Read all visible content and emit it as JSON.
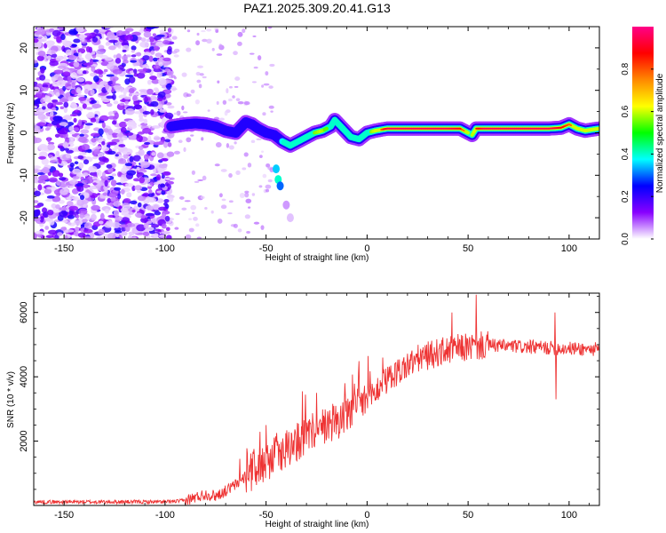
{
  "figure_title": "PAZ1.2025.309.20.41.G13",
  "chart_data": [
    {
      "type": "heatmap",
      "name": "spectrogram",
      "xlabel": "Height of straight line (km)",
      "ylabel": "Frequency (Hz)",
      "xlim": [
        -165,
        115
      ],
      "ylim": [
        -25,
        25
      ],
      "x_ticks": [
        -150,
        -100,
        -50,
        0,
        50,
        100
      ],
      "x_tick_labels": [
        "-150",
        "-100",
        "-50",
        "0",
        "50",
        "100"
      ],
      "y_ticks": [
        -20,
        -10,
        0,
        10,
        20
      ],
      "y_tick_labels": [
        "-20",
        "-10",
        "0",
        "10",
        "20"
      ],
      "noise_region_x": [
        -165,
        -97
      ],
      "ridge": {
        "x": [
          -97,
          -90,
          -85,
          -80,
          -75,
          -70,
          -65,
          -60,
          -57,
          -54,
          -50,
          -46,
          -42,
          -38,
          -34,
          -30,
          -26,
          -22,
          -18,
          -16,
          -12,
          -8,
          -4,
          0,
          4,
          10,
          20,
          30,
          40,
          46,
          50,
          52,
          54,
          58,
          70,
          80,
          90,
          96,
          100,
          104,
          108,
          112,
          115
        ],
        "freq": [
          1.5,
          2.0,
          2.2,
          2.0,
          1.5,
          0.5,
          0.0,
          2.5,
          2.0,
          1.0,
          0.0,
          -0.5,
          -2.0,
          -3.0,
          -2.0,
          -1.0,
          0.0,
          0.5,
          1.5,
          3.0,
          1.0,
          -1.0,
          -1.5,
          0.0,
          0.5,
          1.0,
          1.0,
          1.0,
          1.0,
          1.0,
          0.0,
          -0.5,
          1.0,
          1.0,
          1.0,
          1.0,
          1.0,
          1.2,
          2.0,
          1.0,
          0.5,
          0.8,
          1.0
        ],
        "amplitude": [
          0.3,
          0.32,
          0.35,
          0.35,
          0.32,
          0.3,
          0.35,
          0.3,
          0.28,
          0.3,
          0.32,
          0.3,
          0.35,
          0.55,
          0.45,
          0.45,
          0.55,
          0.6,
          0.45,
          0.4,
          0.45,
          0.4,
          0.45,
          0.5,
          0.6,
          0.95,
          0.95,
          0.95,
          0.95,
          0.9,
          0.55,
          0.5,
          0.85,
          0.95,
          0.95,
          0.95,
          0.95,
          0.9,
          0.8,
          0.65,
          0.6,
          0.6,
          0.6
        ]
      },
      "colorbar": {
        "label": "Normalized spectral amplitude",
        "range": [
          0,
          1
        ],
        "ticks": [
          0.0,
          0.2,
          0.4,
          0.6,
          0.8
        ],
        "tick_labels": [
          "0.0",
          "0.2",
          "0.4",
          "0.6",
          "0.8"
        ],
        "colors": [
          "#ffffff",
          "#8800ff",
          "#0000ff",
          "#00ffff",
          "#00ff00",
          "#ffff00",
          "#ff8800",
          "#ff0000",
          "#ff0088"
        ]
      }
    },
    {
      "type": "line",
      "name": "snr",
      "xlabel": "Height of straight line (km)",
      "ylabel": "SNR (10 * v/v)",
      "xlim": [
        -165,
        115
      ],
      "ylim": [
        0,
        6600
      ],
      "x_ticks": [
        -150,
        -100,
        -50,
        0,
        50,
        100
      ],
      "x_tick_labels": [
        "-150",
        "-100",
        "-50",
        "0",
        "50",
        "100"
      ],
      "y_ticks": [
        2000,
        4000,
        6000
      ],
      "y_tick_labels": [
        "2000",
        "4000",
        "6000"
      ],
      "color": "#ee3333",
      "series": [
        {
          "name": "SNR",
          "x": [
            -165,
            -150,
            -130,
            -110,
            -100,
            -90,
            -85,
            -80,
            -75,
            -70,
            -65,
            -60,
            -55,
            -50,
            -45,
            -40,
            -35,
            -30,
            -25,
            -20,
            -15,
            -10,
            -5,
            0,
            5,
            10,
            15,
            20,
            25,
            30,
            35,
            40,
            45,
            50,
            55,
            60,
            70,
            80,
            90,
            100,
            110,
            115
          ],
          "y": [
            110,
            110,
            110,
            110,
            110,
            150,
            250,
            350,
            300,
            450,
            650,
            900,
            1150,
            1350,
            1550,
            1750,
            1950,
            2150,
            2350,
            2500,
            2650,
            2800,
            3050,
            3300,
            3600,
            3900,
            4150,
            4350,
            4550,
            4650,
            4750,
            4820,
            4880,
            4920,
            4950,
            4980,
            4950,
            4920,
            4900,
            4880,
            4860,
            4850
          ]
        }
      ],
      "spikes": [
        {
          "x": -50,
          "y": 2500
        },
        {
          "x": -32,
          "y": 3550
        },
        {
          "x": -25,
          "y": 3500
        },
        {
          "x": -11,
          "y": 3800
        },
        {
          "x": 42,
          "y": 6000
        },
        {
          "x": 54,
          "y": 6550
        },
        {
          "x": 93,
          "y": 6000
        },
        {
          "x": 93.5,
          "y": 3300
        }
      ]
    }
  ]
}
